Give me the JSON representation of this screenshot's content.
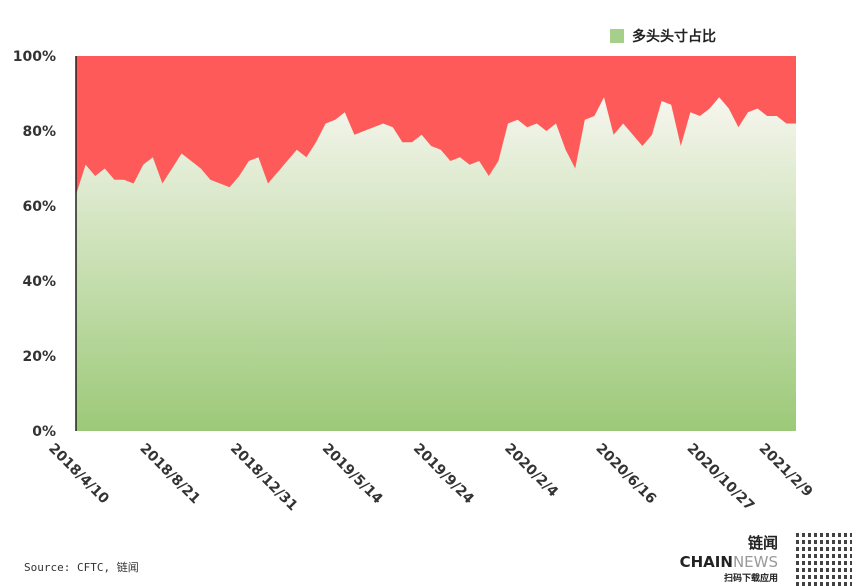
{
  "legend": {
    "label": "多头头寸占比",
    "color": "#a6d08a"
  },
  "source": "Source: CFTC, 链闻",
  "brand": {
    "name_main": "链闻 CHAIN",
    "name_accent": "NEWS",
    "sub": "扫码下载应用"
  },
  "colors": {
    "red": "#ff5a5a",
    "green_top": "#f6f6ee",
    "green_bottom": "#9cc978"
  },
  "chart_data": {
    "type": "area",
    "ylim": [
      0,
      100
    ],
    "yticks": [
      "0%",
      "20%",
      "40%",
      "60%",
      "80%",
      "100%"
    ],
    "xticks": [
      "2018/4/10",
      "2018/8/21",
      "2018/12/31",
      "2019/5/14",
      "2019/9/24",
      "2020/2/4",
      "2020/6/16",
      "2020/10/27",
      "2021/2/9"
    ],
    "grid": false,
    "legend_position": "top-right",
    "series": [
      {
        "name": "多头头寸占比",
        "unit": "%",
        "x": [
          "2018-04-10",
          "2018-04-24",
          "2018-05-08",
          "2018-05-22",
          "2018-06-05",
          "2018-06-19",
          "2018-07-03",
          "2018-07-17",
          "2018-07-31",
          "2018-08-14",
          "2018-08-28",
          "2018-09-11",
          "2018-09-25",
          "2018-10-09",
          "2018-10-23",
          "2018-11-06",
          "2018-11-20",
          "2018-12-04",
          "2018-12-18",
          "2019-01-01",
          "2019-01-15",
          "2019-01-29",
          "2019-02-12",
          "2019-02-26",
          "2019-03-12",
          "2019-03-26",
          "2019-04-09",
          "2019-04-23",
          "2019-05-07",
          "2019-05-21",
          "2019-06-04",
          "2019-06-18",
          "2019-07-02",
          "2019-07-16",
          "2019-07-30",
          "2019-08-13",
          "2019-08-27",
          "2019-09-10",
          "2019-09-24",
          "2019-10-08",
          "2019-10-22",
          "2019-11-05",
          "2019-11-19",
          "2019-12-03",
          "2019-12-17",
          "2019-12-31",
          "2020-01-14",
          "2020-01-28",
          "2020-02-11",
          "2020-02-25",
          "2020-03-10",
          "2020-03-24",
          "2020-04-07",
          "2020-04-21",
          "2020-05-05",
          "2020-05-19",
          "2020-06-02",
          "2020-06-16",
          "2020-06-30",
          "2020-07-14",
          "2020-07-28",
          "2020-08-11",
          "2020-08-25",
          "2020-09-08",
          "2020-09-22",
          "2020-10-06",
          "2020-10-20",
          "2020-11-03",
          "2020-11-17",
          "2020-12-01",
          "2020-12-15",
          "2020-12-29",
          "2021-01-12",
          "2021-01-26",
          "2021-02-09",
          "2021-02-23"
        ],
        "values": [
          63,
          71,
          68,
          70,
          67,
          67,
          66,
          71,
          73,
          66,
          70,
          74,
          72,
          70,
          67,
          66,
          65,
          68,
          72,
          73,
          66,
          69,
          72,
          75,
          73,
          77,
          82,
          83,
          85,
          79,
          80,
          81,
          82,
          81,
          77,
          77,
          79,
          76,
          75,
          72,
          73,
          71,
          72,
          68,
          72,
          82,
          83,
          81,
          82,
          80,
          82,
          75,
          70,
          83,
          84,
          89,
          79,
          82,
          79,
          76,
          79,
          88,
          87,
          76,
          85,
          84,
          86,
          89,
          86,
          81,
          85,
          86,
          84,
          84,
          82,
          82
        ]
      }
    ]
  }
}
